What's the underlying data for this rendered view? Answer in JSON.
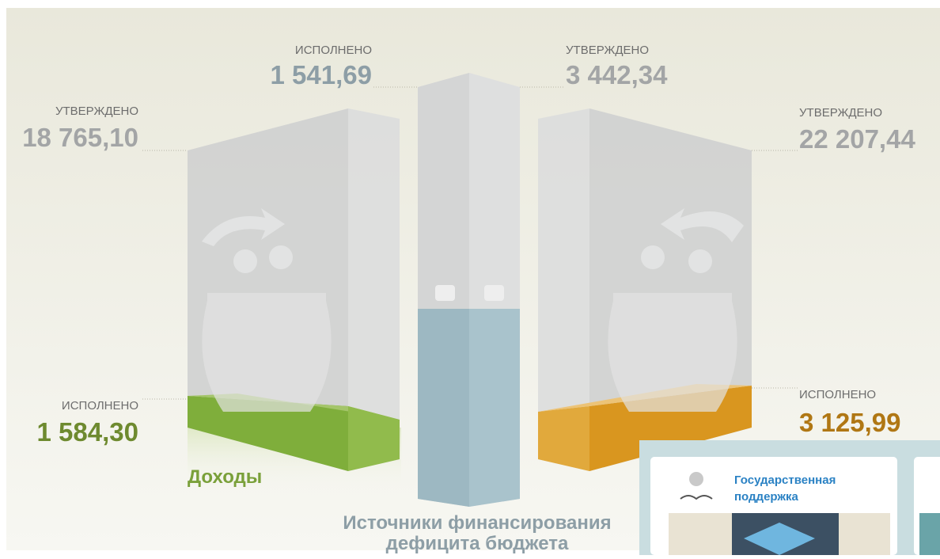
{
  "infographic": {
    "revenue": {
      "name": "Доходы",
      "approved_label": "УТВЕРЖДЕНО",
      "approved": "18 765,10",
      "executed_label": "ИСПОЛНЕНО",
      "executed": "1 584,30"
    },
    "sources": {
      "name_lines": [
        "Источники финансирования",
        "дефицита бюджета"
      ],
      "executed_label": "ИСПОЛНЕНО",
      "executed": "1 541,69",
      "approved_label": "УТВЕРЖДЕНО",
      "approved": "3 442,34"
    },
    "expenses": {
      "approved_label": "УТВЕРЖДЕНО",
      "approved": "22 207,44",
      "executed_label": "ИСПОЛНЕНО",
      "executed": "3 125,99"
    }
  },
  "card": {
    "title_lines": [
      "Государственная",
      "поддержка"
    ]
  }
}
